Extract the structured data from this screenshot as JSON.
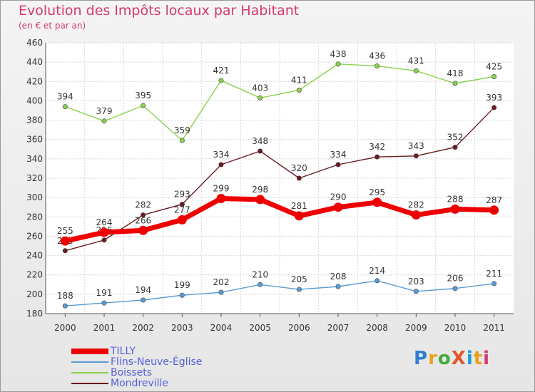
{
  "header": {
    "title": "Evolution des Impôts locaux par Habitant",
    "subtitle": "(en € et par an)"
  },
  "logo": {
    "text": "ProXiti",
    "colors": [
      "#2f7fd1",
      "#e8a21c",
      "#45a83a",
      "#e0572a",
      "#1d9ad6",
      "#e8a21c",
      "#d43a6e"
    ]
  },
  "chart_data": {
    "type": "line",
    "x": [
      "2000",
      "2001",
      "2002",
      "2003",
      "2004",
      "2005",
      "2006",
      "2007",
      "2008",
      "2009",
      "2010",
      "2011"
    ],
    "ylim": [
      180,
      460
    ],
    "yticks": [
      180,
      200,
      220,
      240,
      260,
      280,
      300,
      320,
      340,
      360,
      380,
      400,
      420,
      440,
      460
    ],
    "grid": true,
    "legend_position": "bottom-left",
    "series": [
      {
        "name": "Mondreville",
        "color": "#6b1a1f",
        "values": [
          245,
          256,
          282,
          293,
          334,
          348,
          320,
          334,
          342,
          343,
          352,
          393
        ]
      },
      {
        "name": "Boissets",
        "color": "#8ad24e",
        "values": [
          394,
          379,
          395,
          359,
          421,
          403,
          411,
          438,
          436,
          431,
          418,
          425
        ]
      },
      {
        "name": "Flins-Neuve-Église",
        "color": "#5b9bd5",
        "values": [
          188,
          191,
          194,
          199,
          202,
          210,
          205,
          208,
          214,
          203,
          206,
          211
        ]
      },
      {
        "name": "TILLY",
        "color": "#ee0000",
        "values": [
          255,
          264,
          266,
          277,
          299,
          298,
          281,
          290,
          295,
          282,
          288,
          287
        ]
      }
    ],
    "legend_order": [
      "TILLY",
      "Flins-Neuve-Église",
      "Boissets",
      "Mondreville"
    ]
  }
}
